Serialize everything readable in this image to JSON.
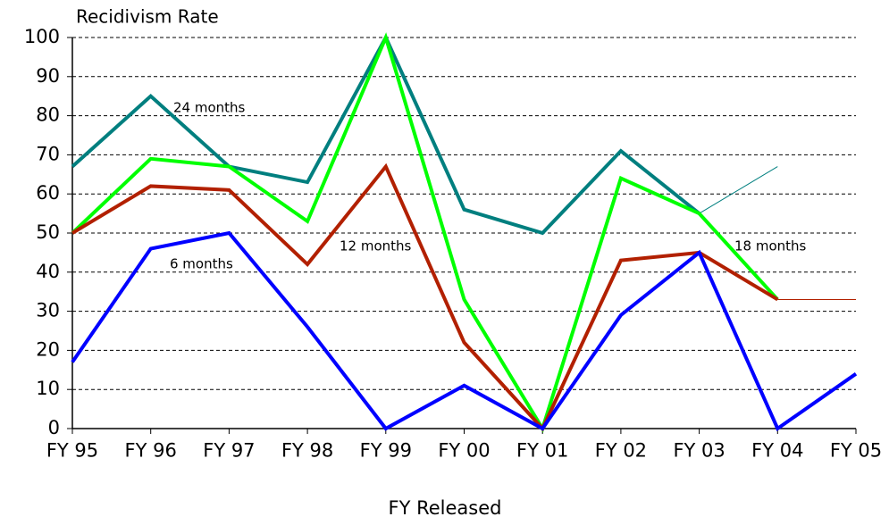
{
  "chart_data": {
    "type": "line",
    "title": "Recidivism Rate",
    "x_label": "FY Released",
    "categories": [
      "FY 95",
      "FY 96",
      "FY 97",
      "FY 98",
      "FY 99",
      "FY 00",
      "FY 01",
      "FY 02",
      "FY 03",
      "FY 04",
      "FY 05"
    ],
    "ylim": [
      0,
      100
    ],
    "yticks": [
      0,
      10,
      20,
      30,
      40,
      50,
      60,
      70,
      80,
      90,
      100
    ],
    "grid": true,
    "series": [
      {
        "name": "24 months",
        "color": "#007f7f",
        "values": [
          67,
          85,
          67,
          63,
          100,
          56,
          50,
          71,
          55,
          null,
          null
        ]
      },
      {
        "color": "#007f7f",
        "thin": true,
        "values": [
          null,
          null,
          null,
          null,
          null,
          null,
          null,
          null,
          55,
          67,
          null
        ]
      },
      {
        "name": "18 months",
        "color": "#00ff00",
        "values": [
          50,
          69,
          67,
          53,
          100,
          33,
          0,
          64,
          55,
          33,
          null
        ]
      },
      {
        "name": "12 months",
        "color": "#b22000",
        "values": [
          50,
          62,
          61,
          42,
          67,
          22,
          0,
          43,
          45,
          33,
          null
        ]
      },
      {
        "color": "#b22000",
        "thin": true,
        "values": [
          null,
          null,
          null,
          null,
          null,
          null,
          null,
          null,
          null,
          33,
          33
        ]
      },
      {
        "name": "6 months",
        "color": "#0000ff",
        "values": [
          17,
          46,
          50,
          26,
          0,
          11,
          0,
          29,
          45,
          0,
          14
        ]
      }
    ]
  }
}
